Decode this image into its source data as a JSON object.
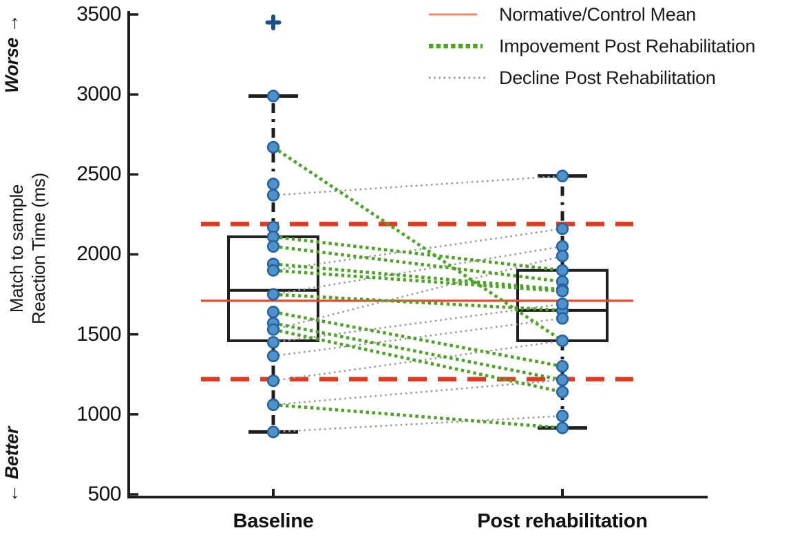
{
  "chart_data": {
    "type": "scatter",
    "subtype": "paired-boxplot-slopegraph",
    "title": "",
    "ylabel_lines": [
      "Match to sample",
      "Reaction Time (ms)"
    ],
    "direction_annotations": {
      "top": "Worse →",
      "bottom": "← Better"
    },
    "yticks": [
      "3500",
      "3000",
      "2500",
      "2000",
      "1500",
      "1000",
      "500"
    ],
    "ylim": [
      500,
      3500
    ],
    "grid": false,
    "legend_position": "top-right",
    "categories": [
      "Baseline",
      "Post rehabilitation"
    ],
    "legend": [
      {
        "label": "Normative/Control Mean",
        "style": "solid",
        "color": "#F0876B"
      },
      {
        "label": "Impovement Post Rehabilitation",
        "style": "dotted-thick",
        "color": "#4CA424"
      },
      {
        "label": "Decline Post Rehabilitation",
        "style": "dotted-thin",
        "color": "#9B9B9B"
      }
    ],
    "normative_mean": 1710,
    "impairment_bounds": [
      2190,
      1220
    ],
    "boxplots": [
      {
        "category": "Baseline",
        "q1": 1460,
        "median": 1775,
        "q3": 2110,
        "whisker_low": 890,
        "whisker_high": 2990,
        "outliers": [
          3450
        ]
      },
      {
        "category": "Post rehabilitation",
        "q1": 1460,
        "median": 1650,
        "q3": 1900,
        "whisker_low": 915,
        "whisker_high": 2490,
        "outliers": []
      }
    ],
    "pairs": [
      {
        "baseline": 2670,
        "post": 1460,
        "change": "improvement"
      },
      {
        "baseline": 2110,
        "post": 1900,
        "change": "improvement"
      },
      {
        "baseline": 2050,
        "post": 1830,
        "change": "improvement"
      },
      {
        "baseline": 1940,
        "post": 1780,
        "change": "improvement"
      },
      {
        "baseline": 1900,
        "post": 1770,
        "change": "improvement"
      },
      {
        "baseline": 1750,
        "post": 1650,
        "change": "improvement"
      },
      {
        "baseline": 1640,
        "post": 1300,
        "change": "improvement"
      },
      {
        "baseline": 1570,
        "post": 1215,
        "change": "improvement"
      },
      {
        "baseline": 1530,
        "post": 1140,
        "change": "improvement"
      },
      {
        "baseline": 1060,
        "post": 915,
        "change": "improvement"
      },
      {
        "baseline": 2370,
        "post": 2490,
        "change": "decline"
      },
      {
        "baseline": 1900,
        "post": 2160,
        "change": "decline"
      },
      {
        "baseline": 1750,
        "post": 2050,
        "change": "decline"
      },
      {
        "baseline": 1530,
        "post": 1990,
        "change": "decline"
      },
      {
        "baseline": 1450,
        "post": 1690,
        "change": "decline"
      },
      {
        "baseline": 1365,
        "post": 1600,
        "change": "decline"
      },
      {
        "baseline": 1210,
        "post": 1460,
        "change": "decline"
      },
      {
        "baseline": 1060,
        "post": 1215,
        "change": "decline"
      },
      {
        "baseline": 890,
        "post": 990,
        "change": "decline"
      }
    ],
    "unpaired_points": {
      "baseline": [
        2990,
        2440,
        2170
      ],
      "post": []
    },
    "colors": {
      "normative_line": "#E6492C",
      "bounds_line": "#DE3B20",
      "improvement": "#4CA424",
      "decline": "#9B9B9B",
      "point_fill": "#4E92C8",
      "point_stroke": "#2563A6",
      "outlier_marker": "#1B4E8A",
      "box_and_axis": "#1E1E1E"
    }
  }
}
